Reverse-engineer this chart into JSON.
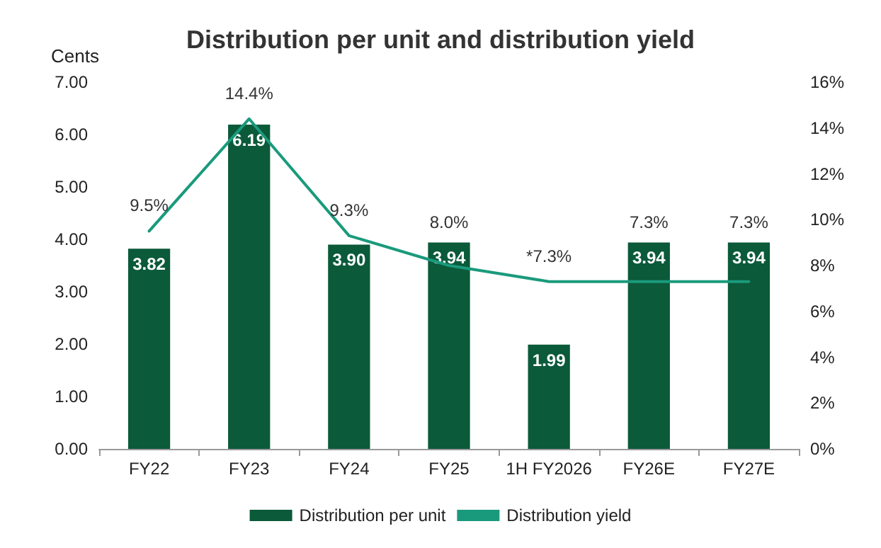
{
  "chart_data": {
    "type": "bar",
    "title": "Distribution per unit and distribution yield",
    "ylabel": "Cents",
    "categories": [
      "FY22",
      "FY23",
      "FY24",
      "FY25",
      "1H FY2026",
      "FY26E",
      "FY27E"
    ],
    "series": [
      {
        "name": "Distribution per unit",
        "color": "#0b5a3a",
        "values": [
          3.82,
          6.19,
          3.9,
          3.94,
          1.99,
          3.94,
          3.94
        ],
        "value_labels": [
          "3.82",
          "6.19",
          "3.90",
          "3.94",
          "1.99",
          "3.94",
          "3.94"
        ]
      },
      {
        "name": "Distribution yield",
        "type": "line",
        "axis": "y2",
        "color": "#1a9a7c",
        "values": [
          9.5,
          14.4,
          9.3,
          8.0,
          7.3,
          7.3,
          7.3
        ],
        "value_labels": [
          "9.5%",
          "14.4%",
          "9.3%",
          "8.0%",
          "*7.3%",
          "7.3%",
          "7.3%"
        ]
      }
    ],
    "ylim": [
      0,
      7
    ],
    "yticks": [
      {
        "value": 0,
        "label": "0.00"
      },
      {
        "value": 1,
        "label": "1.00"
      },
      {
        "value": 2,
        "label": "2.00"
      },
      {
        "value": 3,
        "label": "3.00"
      },
      {
        "value": 4,
        "label": "4.00"
      },
      {
        "value": 5,
        "label": "5.00"
      },
      {
        "value": 6,
        "label": "6.00"
      },
      {
        "value": 7,
        "label": "7.00"
      }
    ],
    "y2lim": [
      0,
      16
    ],
    "y2ticks": [
      {
        "value": 0,
        "label": "0%"
      },
      {
        "value": 2,
        "label": "2%"
      },
      {
        "value": 4,
        "label": "4%"
      },
      {
        "value": 6,
        "label": "6%"
      },
      {
        "value": 8,
        "label": "8%"
      },
      {
        "value": 10,
        "label": "10%"
      },
      {
        "value": 12,
        "label": "12%"
      },
      {
        "value": 14,
        "label": "14%"
      },
      {
        "value": 16,
        "label": "16%"
      }
    ],
    "legend": "bottom",
    "grid": false,
    "marker": "none",
    "line_style": "solid"
  }
}
